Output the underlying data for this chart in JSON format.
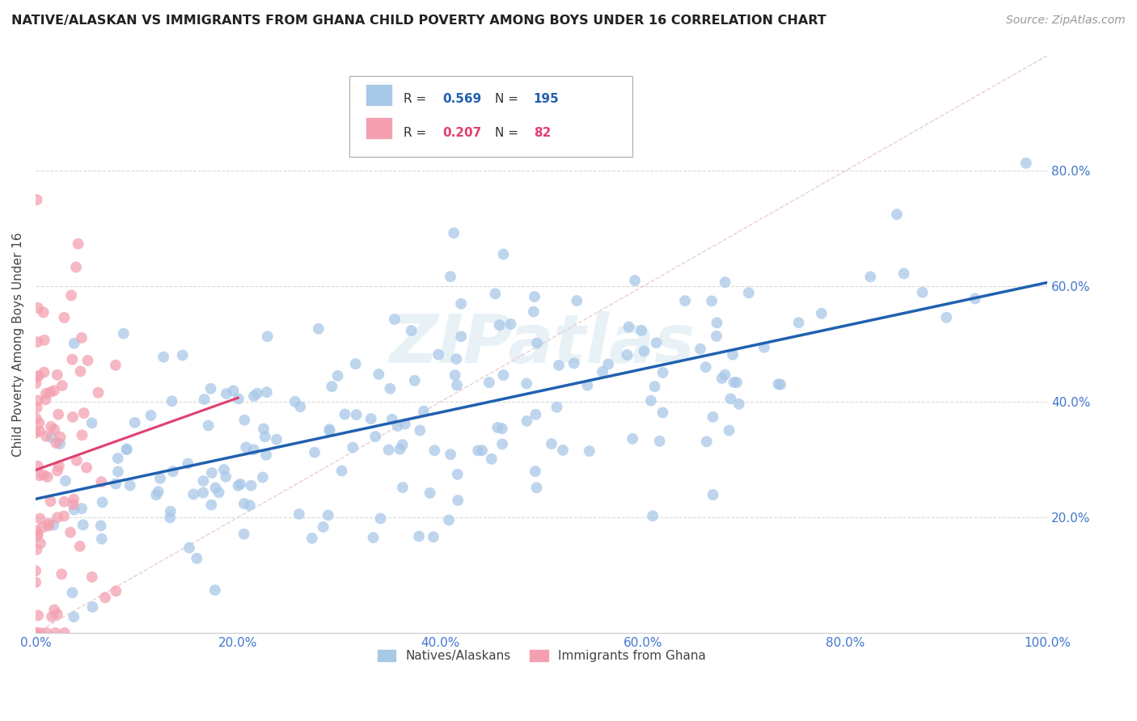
{
  "title": "NATIVE/ALASKAN VS IMMIGRANTS FROM GHANA CHILD POVERTY AMONG BOYS UNDER 16 CORRELATION CHART",
  "source": "Source: ZipAtlas.com",
  "ylabel": "Child Poverty Among Boys Under 16",
  "xlim": [
    0,
    1
  ],
  "ylim": [
    0,
    1
  ],
  "native_color": "#a8c8e8",
  "ghana_color": "#f4a0b0",
  "native_line_color": "#2060b0",
  "ghana_line_color": "#e04070",
  "native_label": "Natives/Alaskans",
  "ghana_label": "Immigrants from Ghana",
  "background_color": "#ffffff",
  "watermark_text": "ZIPatlas",
  "native_R": 0.569,
  "native_N": 195,
  "ghana_R": 0.207,
  "ghana_N": 82,
  "ytick_labels_right": true,
  "yticks": [
    0.0,
    0.2,
    0.4,
    0.6,
    0.8
  ],
  "xticks": [
    0.0,
    0.2,
    0.4,
    0.6,
    0.8,
    1.0
  ]
}
